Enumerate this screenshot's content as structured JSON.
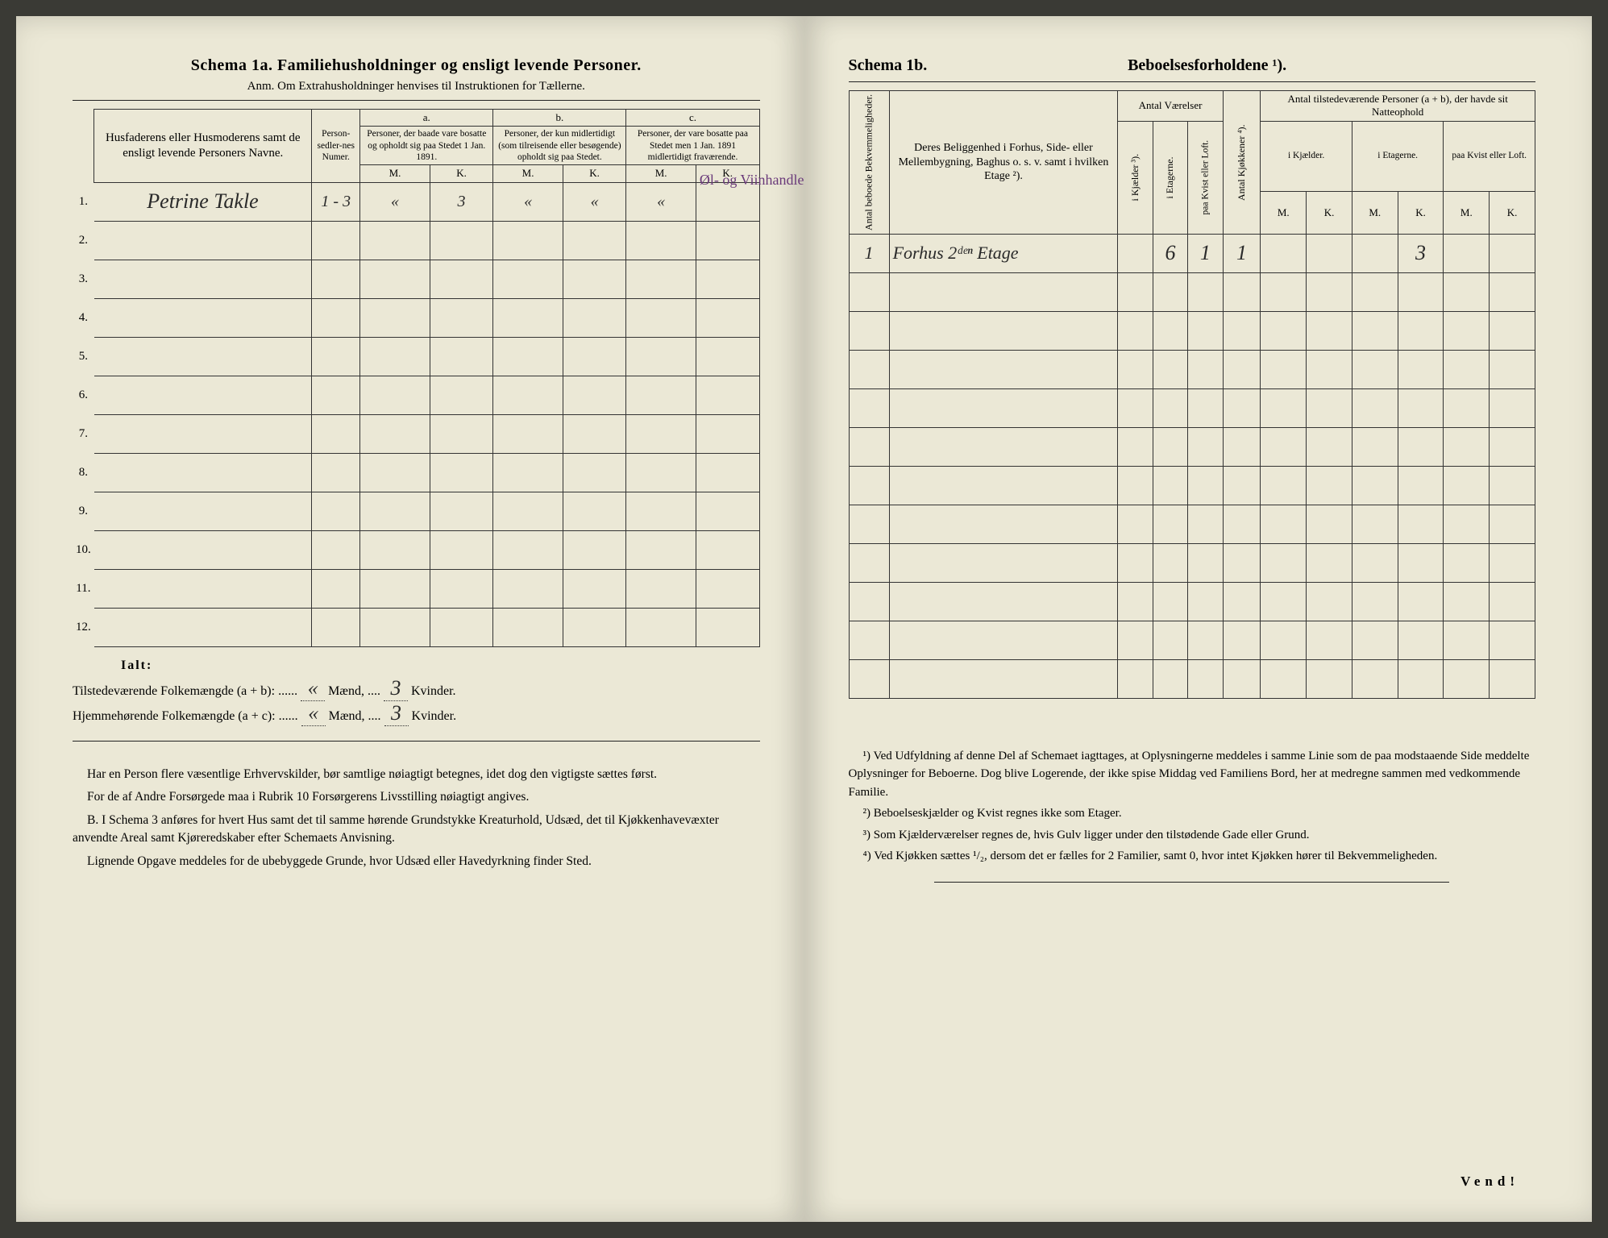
{
  "left": {
    "title": "Schema 1a.  Familiehusholdninger og ensligt levende Personer.",
    "subtitle": "Anm. Om Extrahusholdninger henvises til Instruktionen for Tællerne.",
    "col_name_head": "Husfaderens eller Husmoderens samt de ensligt levende Personers Navne.",
    "col_person": "Person-sedler-nes Numer.",
    "col_a_label": "a.",
    "col_b_label": "b.",
    "col_c_label": "c.",
    "col_a": "Personer, der baade vare bosatte og opholdt sig paa Stedet 1 Jan. 1891.",
    "col_b": "Personer, der kun midlertidigt (som tilreisende eller besøgende) opholdt sig paa Stedet.",
    "col_c": "Personer, der vare bosatte paa Stedet men 1 Jan. 1891 midlertidigt fraværende.",
    "mk_m": "M.",
    "mk_k": "K.",
    "rows": [
      {
        "n": "1.",
        "name": "Petrine Takle",
        "pers": "1 - 3",
        "am": "«",
        "ak": "3",
        "bm": "«",
        "bk": "«",
        "cm": "«",
        "ck": ""
      },
      {
        "n": "2.",
        "name": "",
        "pers": "",
        "am": "",
        "ak": "",
        "bm": "",
        "bk": "",
        "cm": "",
        "ck": ""
      },
      {
        "n": "3.",
        "name": "",
        "pers": "",
        "am": "",
        "ak": "",
        "bm": "",
        "bk": "",
        "cm": "",
        "ck": ""
      },
      {
        "n": "4.",
        "name": "",
        "pers": "",
        "am": "",
        "ak": "",
        "bm": "",
        "bk": "",
        "cm": "",
        "ck": ""
      },
      {
        "n": "5.",
        "name": "",
        "pers": "",
        "am": "",
        "ak": "",
        "bm": "",
        "bk": "",
        "cm": "",
        "ck": ""
      },
      {
        "n": "6.",
        "name": "",
        "pers": "",
        "am": "",
        "ak": "",
        "bm": "",
        "bk": "",
        "cm": "",
        "ck": ""
      },
      {
        "n": "7.",
        "name": "",
        "pers": "",
        "am": "",
        "ak": "",
        "bm": "",
        "bk": "",
        "cm": "",
        "ck": ""
      },
      {
        "n": "8.",
        "name": "",
        "pers": "",
        "am": "",
        "ak": "",
        "bm": "",
        "bk": "",
        "cm": "",
        "ck": ""
      },
      {
        "n": "9.",
        "name": "",
        "pers": "",
        "am": "",
        "ak": "",
        "bm": "",
        "bk": "",
        "cm": "",
        "ck": ""
      },
      {
        "n": "10.",
        "name": "",
        "pers": "",
        "am": "",
        "ak": "",
        "bm": "",
        "bk": "",
        "cm": "",
        "ck": ""
      },
      {
        "n": "11.",
        "name": "",
        "pers": "",
        "am": "",
        "ak": "",
        "bm": "",
        "bk": "",
        "cm": "",
        "ck": ""
      },
      {
        "n": "12.",
        "name": "",
        "pers": "",
        "am": "",
        "ak": "",
        "bm": "",
        "bk": "",
        "cm": "",
        "ck": ""
      }
    ],
    "c_annotation": "Øl- og Viinhandlerske",
    "ialt": "Ialt:",
    "tot1_label": "Tilstedeværende Folkemængde (a + b):",
    "tot2_label": "Hjemmehørende Folkemængde (a + c):",
    "maend": "Mænd,",
    "kvinder": "Kvinder.",
    "tot1_m": "«",
    "tot1_k": "3",
    "tot2_m": "«",
    "tot2_k": "3",
    "para1": "Har en Person flere væsentlige Erhvervskilder, bør samtlige nøiagtigt betegnes, idet dog den vigtigste sættes først.",
    "para2": "For de af Andre Forsørgede maa i Rubrik 10 Forsørgerens Livsstilling nøiagtigt angives.",
    "para3_b": "B.",
    "para3": "I Schema 3 anføres for hvert Hus samt det til samme hørende Grundstykke Kreaturhold, Udsæd, det til Kjøkkenhavevæxter anvendte Areal samt Kjøreredskaber efter Schemaets Anvisning.",
    "para4": "Lignende Opgave meddeles for de ubebyggede Grunde, hvor Udsæd eller Havedyrkning finder Sted."
  },
  "right": {
    "title_left": "Schema 1b.",
    "title_right": "Beboelsesforholdene ¹).",
    "col_ab": "Antal beboede Bekvemmeligheder.",
    "col_belig": "Deres Beliggenhed i Forhus, Side- eller Mellembygning, Baghus o. s. v. samt i hvilken Etage ²).",
    "grp_vaer": "Antal Værelser",
    "v_kj": "i Kjælder ³).",
    "v_et": "i Etagerne.",
    "v_kv": "paa Kvist eller Loft.",
    "col_kjok": "Antal Kjøkkener ⁴).",
    "grp_natt": "Antal tilstedeværende Personer (a + b), der havde sit Natteophold",
    "n_kj": "i Kjælder.",
    "n_et": "i Etagerne.",
    "n_kv": "paa Kvist eller Loft.",
    "mk_m": "M.",
    "mk_k": "K.",
    "rows": [
      {
        "ab": "1",
        "belig": "Forhus 2ᵈᵉⁿ Etage",
        "vkj": "",
        "vet": "6",
        "vkv": "1",
        "kjok": "1",
        "nkjm": "",
        "nkjk": "",
        "netm": "",
        "netk": "3",
        "nkvm": "",
        "nkvk": ""
      },
      {
        "ab": "",
        "belig": "",
        "vkj": "",
        "vet": "",
        "vkv": "",
        "kjok": "",
        "nkjm": "",
        "nkjk": "",
        "netm": "",
        "netk": "",
        "nkvm": "",
        "nkvk": ""
      },
      {
        "ab": "",
        "belig": "",
        "vkj": "",
        "vet": "",
        "vkv": "",
        "kjok": "",
        "nkjm": "",
        "nkjk": "",
        "netm": "",
        "netk": "",
        "nkvm": "",
        "nkvk": ""
      },
      {
        "ab": "",
        "belig": "",
        "vkj": "",
        "vet": "",
        "vkv": "",
        "kjok": "",
        "nkjm": "",
        "nkjk": "",
        "netm": "",
        "netk": "",
        "nkvm": "",
        "nkvk": ""
      },
      {
        "ab": "",
        "belig": "",
        "vkj": "",
        "vet": "",
        "vkv": "",
        "kjok": "",
        "nkjm": "",
        "nkjk": "",
        "netm": "",
        "netk": "",
        "nkvm": "",
        "nkvk": ""
      },
      {
        "ab": "",
        "belig": "",
        "vkj": "",
        "vet": "",
        "vkv": "",
        "kjok": "",
        "nkjm": "",
        "nkjk": "",
        "netm": "",
        "netk": "",
        "nkvm": "",
        "nkvk": ""
      },
      {
        "ab": "",
        "belig": "",
        "vkj": "",
        "vet": "",
        "vkv": "",
        "kjok": "",
        "nkjm": "",
        "nkjk": "",
        "netm": "",
        "netk": "",
        "nkvm": "",
        "nkvk": ""
      },
      {
        "ab": "",
        "belig": "",
        "vkj": "",
        "vet": "",
        "vkv": "",
        "kjok": "",
        "nkjm": "",
        "nkjk": "",
        "netm": "",
        "netk": "",
        "nkvm": "",
        "nkvk": ""
      },
      {
        "ab": "",
        "belig": "",
        "vkj": "",
        "vet": "",
        "vkv": "",
        "kjok": "",
        "nkjm": "",
        "nkjk": "",
        "netm": "",
        "netk": "",
        "nkvm": "",
        "nkvk": ""
      },
      {
        "ab": "",
        "belig": "",
        "vkj": "",
        "vet": "",
        "vkv": "",
        "kjok": "",
        "nkjm": "",
        "nkjk": "",
        "netm": "",
        "netk": "",
        "nkvm": "",
        "nkvk": ""
      },
      {
        "ab": "",
        "belig": "",
        "vkj": "",
        "vet": "",
        "vkv": "",
        "kjok": "",
        "nkjm": "",
        "nkjk": "",
        "netm": "",
        "netk": "",
        "nkvm": "",
        "nkvk": ""
      },
      {
        "ab": "",
        "belig": "",
        "vkj": "",
        "vet": "",
        "vkv": "",
        "kjok": "",
        "nkjm": "",
        "nkjk": "",
        "netm": "",
        "netk": "",
        "nkvm": "",
        "nkvk": ""
      }
    ],
    "fn1": "¹) Ved Udfyldning af denne Del af Schemaet iagttages, at Oplysningerne meddeles i samme Linie som de paa modstaaende Side meddelte Oplysninger for Beboerne. Dog blive Logerende, der ikke spise Middag ved Familiens Bord, her at medregne sammen med vedkommende Familie.",
    "fn2": "²) Beboelseskjælder og Kvist regnes ikke som Etager.",
    "fn3": "³) Som Kjælderværelser regnes de, hvis Gulv ligger under den tilstødende Gade eller Grund.",
    "fn4": "⁴) Ved Kjøkken sættes ¹/₂, dersom det er fælles for 2 Familier, samt 0, hvor intet Kjøkken hører til Bekvemmeligheden.",
    "vend": "Vend!"
  },
  "colors": {
    "paper": "#ebe8d6",
    "ink": "#222222",
    "hand": "#2a2a2a",
    "purple": "#6a3a7a"
  }
}
